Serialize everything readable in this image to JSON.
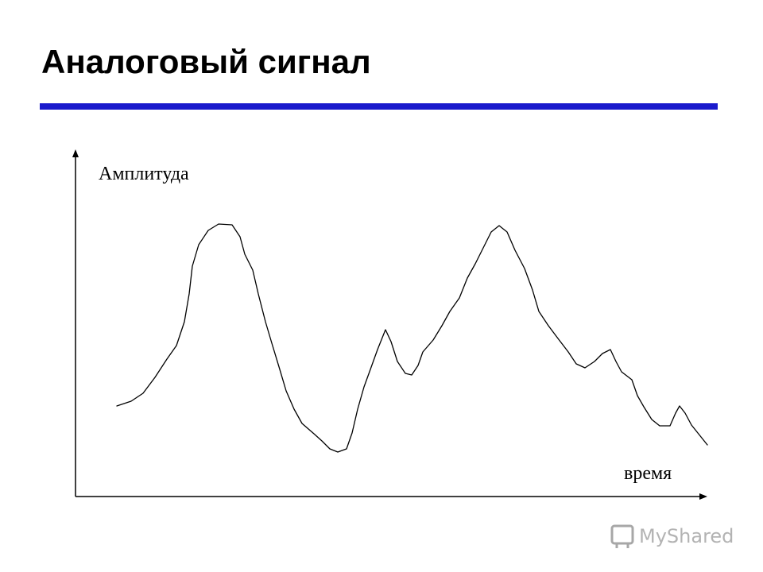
{
  "title": "Аналоговый сигнал",
  "y_axis_label": "Амплитуда",
  "x_axis_label": "время",
  "watermark": "MyShared"
}
